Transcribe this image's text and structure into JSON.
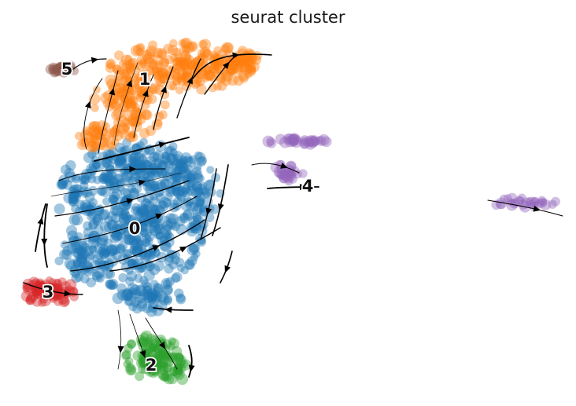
{
  "chart_data": {
    "type": "scatter",
    "title": "seurat cluster",
    "xlabel": "",
    "ylabel": "",
    "grid": false,
    "legend": "on data",
    "overlay": "velocity stream arrows",
    "clusters": [
      {
        "name": "0",
        "color": "#1f77b4"
      },
      {
        "name": "1",
        "color": "#ff7f0e"
      },
      {
        "name": "2",
        "color": "#2ca02c"
      },
      {
        "name": "3",
        "color": "#d62728"
      },
      {
        "name": "4",
        "color": "#9467bd"
      },
      {
        "name": "5",
        "color": "#8c564b"
      }
    ]
  }
}
